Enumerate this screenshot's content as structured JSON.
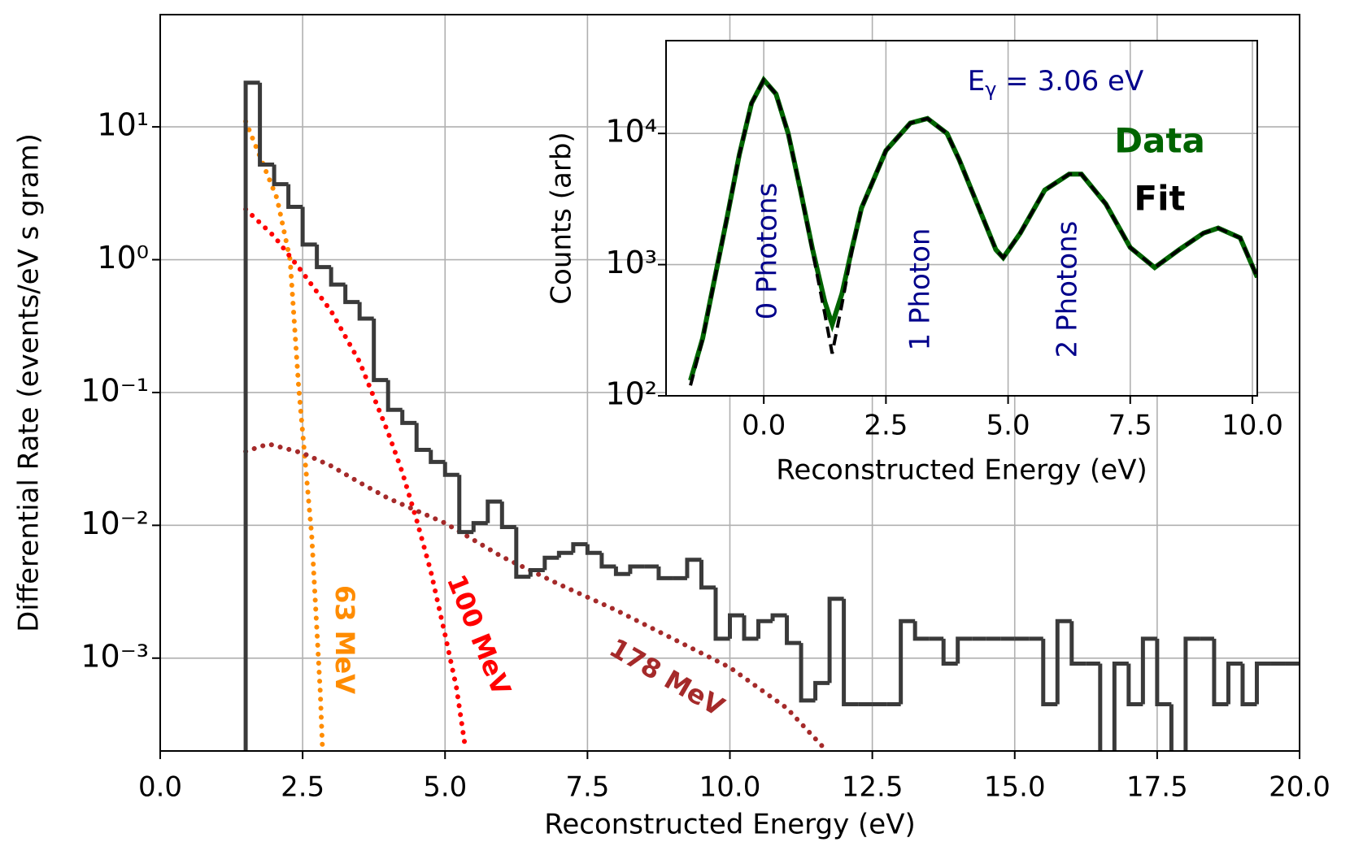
{
  "chart_data": [
    {
      "type": "histogram",
      "xlabel": "Reconstructed Energy (eV)",
      "ylabel": "Differential Rate (events/eV s gram)",
      "bins": [
        1.5,
        1.75,
        2,
        2.25,
        2.5,
        2.75,
        3,
        3.25,
        3.5,
        3.75,
        4,
        4.25,
        4.5,
        4.75,
        5,
        5.25,
        5.5,
        5.75,
        6,
        6.25,
        6.5,
        6.75,
        7,
        7.25,
        7.5,
        7.75,
        8,
        8.25,
        8.5,
        8.75,
        9,
        9.25,
        9.5,
        9.75,
        10,
        10.25,
        10.5,
        10.75,
        11,
        11.25,
        11.5,
        11.75,
        12,
        12.25,
        12.5,
        12.75,
        13,
        13.25,
        13.5,
        13.75,
        14,
        14.25,
        14.5,
        14.75,
        15,
        15.25,
        15.5,
        15.75,
        16,
        16.25,
        16.5,
        16.75,
        17,
        17.25,
        17.5,
        17.75,
        18,
        18.25,
        18.5,
        18.75,
        19,
        19.25,
        19.5,
        19.75,
        20
      ],
      "values": [
        21.5,
        5.2,
        3.7,
        2.5,
        1.3,
        0.88,
        0.65,
        0.48,
        0.36,
        0.124,
        0.074,
        0.059,
        0.037,
        0.03,
        0.024,
        0.0089,
        0.0104,
        0.0151,
        0.0097,
        0.0041,
        0.0046,
        0.0057,
        0.0062,
        0.0072,
        0.0062,
        0.0049,
        0.0043,
        0.0049,
        0.0049,
        0.004,
        0.004,
        0.0055,
        0.0034,
        0.0014,
        0.0021,
        0.0014,
        0.0019,
        0.0021,
        0.0013,
        0.00048,
        0.00065,
        0.0028,
        0.00045,
        0.00045,
        0.00045,
        0.00045,
        0.0019,
        0.0014,
        0.0014,
        0.00091,
        0.0014,
        0.0014,
        0.0014,
        0.0014,
        0.0014,
        0.0014,
        0.00045,
        0.0019,
        0.00091,
        0.00091,
        0,
        0.00091,
        0.00045,
        0.0014,
        0.00045,
        0,
        0.0014,
        0.0014,
        0.00045,
        0.00091,
        0.00045,
        0.00091,
        0.00091,
        0.00091
      ],
      "color": "#3a3a3a",
      "curves": [
        {
          "label": "63 MeV",
          "color": "#ff8c00",
          "x": [
            1.5,
            1.75,
            2.05,
            2.28,
            2.43,
            2.66,
            2.81,
            2.85
          ],
          "values": [
            11,
            6,
            2.9,
            1.0,
            0.11,
            0.0083,
            0.00055,
            0.0002
          ]
        },
        {
          "label": "100 MeV",
          "color": "#ff0000",
          "x": [
            1.5,
            2.0,
            2.5,
            3.0,
            3.5,
            4.0,
            4.25,
            4.5,
            4.75,
            5.0,
            5.2,
            5.35
          ],
          "values": [
            2.4,
            1.5,
            0.8,
            0.41,
            0.17,
            0.05,
            0.025,
            0.011,
            0.0045,
            0.0015,
            0.0006,
            0.00022
          ]
        },
        {
          "label": "178 MeV",
          "color": "#a52a2a",
          "x": [
            1.5,
            1.9,
            2.5,
            3.0,
            3.5,
            4.0,
            5.0,
            6.0,
            7.0,
            8.0,
            9.0,
            10.0,
            11.0,
            11.7
          ],
          "values": [
            0.036,
            0.041,
            0.035,
            0.028,
            0.021,
            0.016,
            0.0104,
            0.0058,
            0.0036,
            0.0023,
            0.0014,
            0.00085,
            0.00042,
            0.0002
          ]
        }
      ],
      "xlim": [
        0,
        20
      ],
      "ylim": [
        0.0002,
        70
      ],
      "ylog": true,
      "grid": true,
      "xticks": [
        {
          "value": 0,
          "label": "0.0"
        },
        2.5,
        {
          "value": 5,
          "label": "5.0"
        },
        7.5,
        {
          "value": 10,
          "label": "10.0"
        },
        12.5,
        {
          "value": 15,
          "label": "15.0"
        },
        17.5,
        {
          "value": 20,
          "label": "20.0"
        }
      ],
      "yticks": [
        {
          "value": 0.001,
          "label": "10⁻³"
        },
        {
          "value": 0.01,
          "label": "10⁻²"
        },
        {
          "value": 0.1,
          "label": "10⁻¹"
        },
        {
          "value": 1,
          "label": "10⁰"
        },
        {
          "value": 10,
          "label": "10¹"
        }
      ]
    },
    {
      "type": "line",
      "xlabel": "Reconstructed Energy (eV)",
      "ylabel": "Counts (arb)",
      "x": [
        -1.5,
        -1.25,
        -1.0,
        -0.75,
        -0.5,
        -0.25,
        0,
        0.25,
        0.5,
        0.75,
        1.0,
        1.25,
        1.4,
        1.6,
        1.8,
        2.0,
        2.5,
        3.0,
        3.35,
        3.75,
        4.0,
        4.5,
        4.75,
        4.9,
        5.25,
        5.75,
        6.25,
        6.5,
        7.0,
        7.5,
        8.0,
        8.5,
        9.0,
        9.3,
        9.75,
        10.1
      ],
      "series": [
        {
          "name": "Data",
          "color": "#006400",
          "values": [
            131,
            275,
            800,
            2300,
            6900,
            17000,
            25600,
            20000,
            10000,
            3700,
            1300,
            520,
            350,
            600,
            1300,
            2700,
            7400,
            12000,
            13000,
            10000,
            6300,
            2200,
            1300,
            1130,
            1740,
            3700,
            4900,
            4900,
            2900,
            1350,
            950,
            1300,
            1740,
            1900,
            1600,
            800
          ]
        },
        {
          "name": "Fit",
          "color": "#000000",
          "dashed": true,
          "values": [
            120,
            270,
            790,
            2300,
            6900,
            17000,
            25600,
            20000,
            10000,
            3700,
            1250,
            420,
            210,
            500,
            1250,
            2700,
            7400,
            12000,
            13000,
            10000,
            6300,
            2200,
            1300,
            1130,
            1740,
            3700,
            4900,
            4900,
            2900,
            1350,
            950,
            1300,
            1740,
            1900,
            1600,
            800
          ]
        }
      ],
      "annotations": [
        {
          "text": "0 Photons"
        },
        {
          "text": "1 Photon"
        },
        {
          "text": "2 Photons"
        }
      ],
      "energy_label": {
        "base": "E",
        "sub": "γ",
        "rest": " = 3.06 eV"
      },
      "legend": "upper right",
      "xlim": [
        -2,
        10.1
      ],
      "ylim": [
        100,
        51000
      ],
      "ylog": true,
      "grid": true,
      "xticks": [
        {
          "value": 0,
          "label": "0.0"
        },
        2.5,
        {
          "value": 5,
          "label": "5.0"
        },
        7.5,
        {
          "value": 10,
          "label": "10.0"
        }
      ],
      "yticks": [
        {
          "value": 100,
          "label": "10²"
        },
        {
          "value": 1000,
          "label": "10³"
        },
        {
          "value": 10000,
          "label": "10⁴"
        }
      ]
    }
  ]
}
